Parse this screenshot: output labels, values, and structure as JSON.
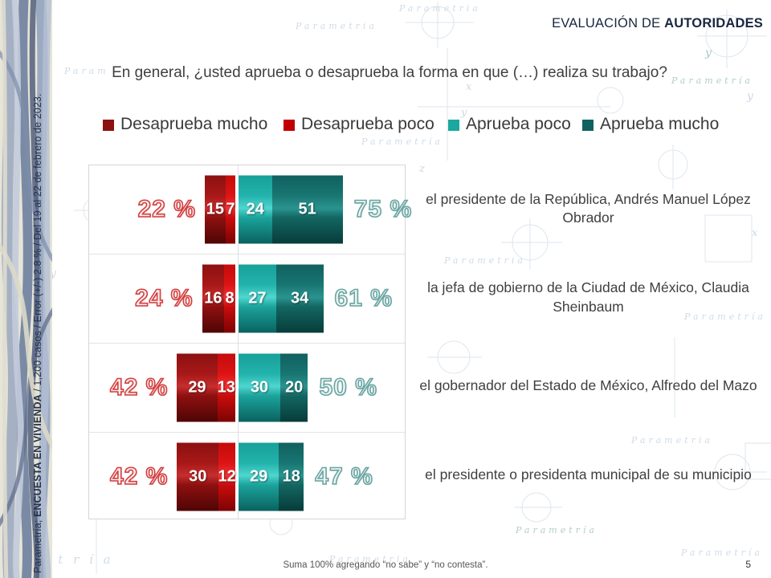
{
  "header": {
    "prefix": "EVALUACIÓN DE ",
    "bold": "AUTORIDADES"
  },
  "title": "En general, ¿usted aprueba o desaprueba la forma en que (…) realiza su trabajo?",
  "side_note": {
    "prefix": "Parametría; ",
    "bold": "ENCUESTA EN VIVIENDA",
    "suffix": " / 1,200 casos / Error (+/-) 2.8 % / Del 19 al 22 de febrero de 2023."
  },
  "legend": [
    {
      "label": "Desaprueba mucho",
      "color": "#8C1111"
    },
    {
      "label": "Desaprueba poco",
      "color": "#C00000"
    },
    {
      "label": "Aprueba poco",
      "color": "#1AA8A0"
    },
    {
      "label": "Aprueba mucho",
      "color": "#0E6360"
    }
  ],
  "chart_data": {
    "type": "bar",
    "variant": "horizontal-diverging-stacked",
    "series_names": [
      "Desaprueba mucho",
      "Desaprueba poco",
      "Aprueba poco",
      "Aprueba mucho"
    ],
    "unit": "%",
    "note": "red series stack leftward from center axis, teal series rightward",
    "rows": [
      {
        "label": "el presidente de la República, Andrés Manuel López Obrador",
        "values": [
          15,
          7,
          24,
          51
        ],
        "left_total": "22 %",
        "right_total": "75 %"
      },
      {
        "label": "la jefa de gobierno de la Ciudad de México, Claudia Sheinbaum",
        "values": [
          16,
          8,
          27,
          34
        ],
        "left_total": "24 %",
        "right_total": "61 %"
      },
      {
        "label": "el gobernador del Estado de México, Alfredo del Mazo",
        "values": [
          29,
          13,
          30,
          20
        ],
        "left_total": "42 %",
        "right_total": "50 %"
      },
      {
        "label": "el presidente o presidenta municipal de su municipio",
        "values": [
          30,
          12,
          29,
          18
        ],
        "left_total": "42 %",
        "right_total": "47 %"
      }
    ]
  },
  "footer": {
    "note": "Suma 100% agregando “no sabe” y “no contesta”.",
    "page_number": "5"
  },
  "watermark": {
    "brand": "Parametría"
  },
  "colors": {
    "header_navy": "#17273F",
    "disapprove_outline": "#D24040",
    "approve_outline": "#6AA5A2",
    "watermark_blue": "#CCD8E5",
    "watermark_teal": "#A9C9C6"
  }
}
